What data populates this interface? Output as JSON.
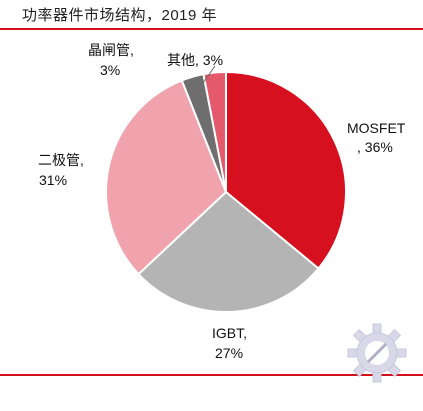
{
  "chart_data": {
    "type": "pie",
    "title": "功率器件市场结构，2019 年",
    "slices": [
      {
        "label_line1": "MOSFET",
        "label_line2": ", 36%",
        "value": 36,
        "color": "#d7101f"
      },
      {
        "label_line1": "IGBT,",
        "label_line2": "27%",
        "value": 27,
        "color": "#b4b4b4"
      },
      {
        "label_line1": "二极管,",
        "label_line2": "31%",
        "value": 31,
        "color": "#f0a3ad"
      },
      {
        "label_line1": "晶闸管,",
        "label_line2": "3%",
        "value": 3,
        "color": "#6e6e6e"
      },
      {
        "label_line1": "其他",
        "label_line2": ", 3%",
        "value": 3,
        "color": "#e45a6c"
      }
    ]
  }
}
